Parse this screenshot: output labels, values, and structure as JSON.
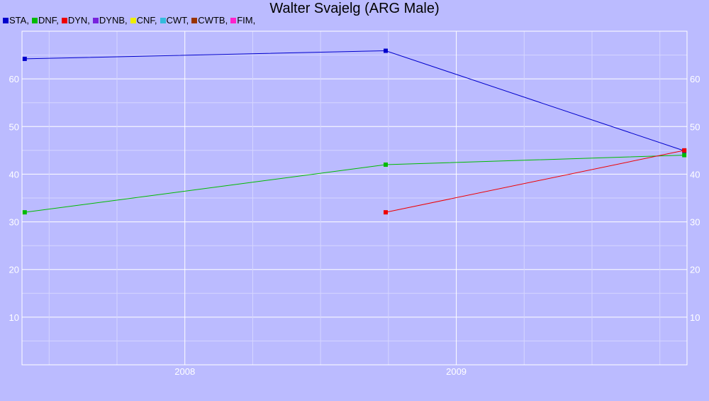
{
  "chart_data": {
    "type": "line",
    "title": "Walter Svajelg (ARG Male)",
    "xlabel": "",
    "ylabel": "",
    "x_ticks": [
      "2008",
      "2009"
    ],
    "x_range": [
      2007.4,
      2009.85
    ],
    "ylim": [
      0,
      70
    ],
    "y_ticks": [
      10,
      20,
      30,
      40,
      50,
      60
    ],
    "grid": true,
    "legend_position": "top-left",
    "legend": [
      {
        "label": "STA,",
        "color": "#0000cc"
      },
      {
        "label": "DNF,",
        "color": "#00bb00"
      },
      {
        "label": "DYN,",
        "color": "#ee0000"
      },
      {
        "label": "DYNB,",
        "color": "#7722dd"
      },
      {
        "label": "CNF,",
        "color": "#eeee00"
      },
      {
        "label": "CWT,",
        "color": "#33bbdd"
      },
      {
        "label": "CWTB,",
        "color": "#993300"
      },
      {
        "label": "FIM,",
        "color": "#ff22cc"
      }
    ],
    "series": [
      {
        "name": "STA",
        "color": "#0000cc",
        "points": [
          [
            2007.41,
            64.2
          ],
          [
            2008.74,
            65.9
          ],
          [
            2009.84,
            44.9
          ]
        ]
      },
      {
        "name": "DNF",
        "color": "#00bb00",
        "points": [
          [
            2007.41,
            32
          ],
          [
            2008.74,
            42
          ],
          [
            2009.84,
            44
          ]
        ]
      },
      {
        "name": "DYN",
        "color": "#ee0000",
        "points": [
          [
            2008.74,
            32
          ],
          [
            2009.84,
            45
          ]
        ]
      }
    ]
  }
}
